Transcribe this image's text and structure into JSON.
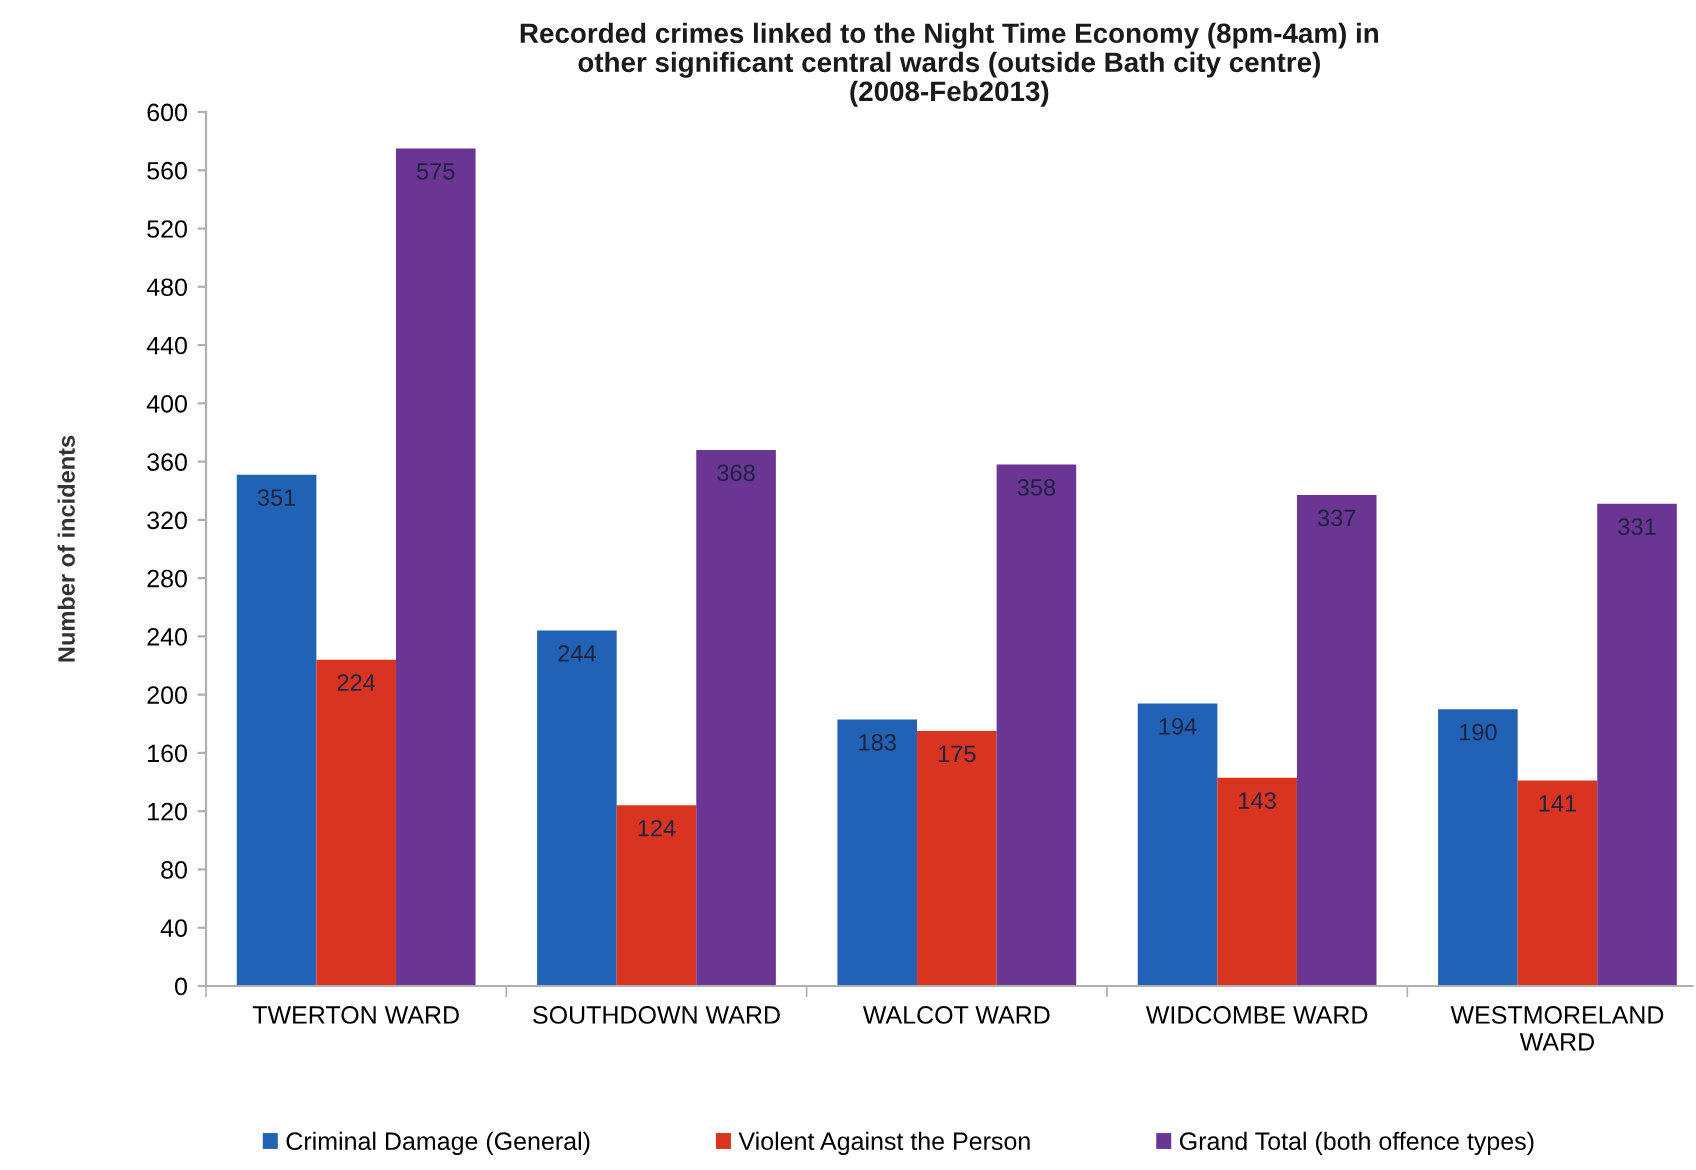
{
  "chart_data": {
    "type": "bar",
    "title": "Recorded crimes linked to the Night Time Economy (8pm-4am) in\nother significant central wards (outside Bath city centre)\n(2008-Feb2013)",
    "ylabel": "Number of incidents",
    "categories": [
      "TWERTON WARD",
      "SOUTHDOWN WARD",
      "WALCOT WARD",
      "WIDCOMBE WARD",
      "WESTMORELAND\nWARD"
    ],
    "series": [
      {
        "name": "Criminal Damage (General)",
        "color": "#2162b4",
        "values": [
          351,
          244,
          183,
          194,
          190
        ]
      },
      {
        "name": "Violent Against the Person",
        "color": "#d8341f",
        "values": [
          224,
          124,
          175,
          143,
          141
        ]
      },
      {
        "name": "Grand Total (both offence types)",
        "color": "#6a3593",
        "values": [
          575,
          368,
          358,
          337,
          331
        ]
      }
    ],
    "ylim": [
      0,
      600
    ],
    "yticks": [
      0,
      40,
      80,
      120,
      160,
      200,
      240,
      280,
      320,
      360,
      400,
      440,
      480,
      520,
      560,
      600
    ],
    "data_labels": true,
    "grid": false,
    "legend": "bottom"
  }
}
